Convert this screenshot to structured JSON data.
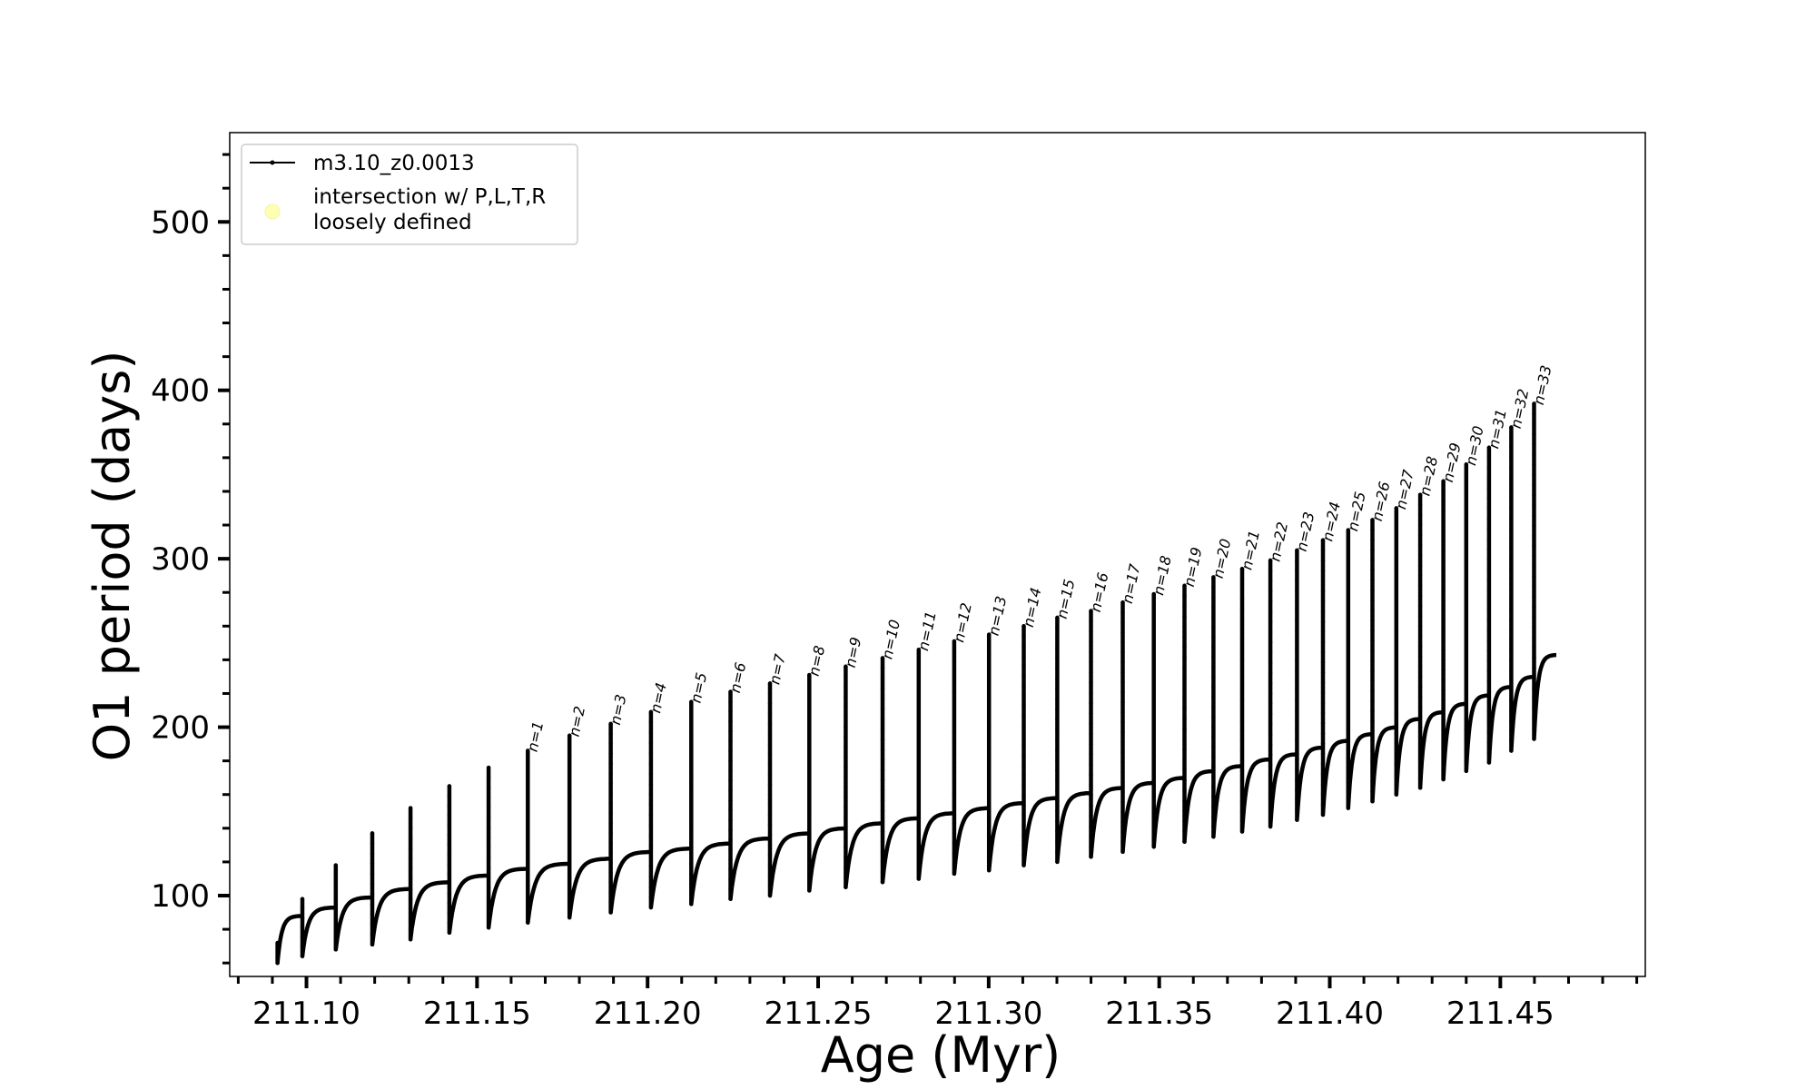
{
  "chart_data": {
    "type": "line",
    "xlabel": "Age (Myr)",
    "ylabel": "O1 period (days)",
    "xlim": [
      211.0775,
      211.4925
    ],
    "ylim": [
      52,
      553
    ],
    "xticks": [
      211.1,
      211.15,
      211.2,
      211.25,
      211.3,
      211.35,
      211.4,
      211.45
    ],
    "xtick_labels": [
      "211.10",
      "211.15",
      "211.20",
      "211.25",
      "211.30",
      "211.35",
      "211.40",
      "211.45"
    ],
    "yticks": [
      100,
      200,
      300,
      400,
      500
    ],
    "ytick_labels": [
      "100",
      "200",
      "300",
      "400",
      "500"
    ],
    "grid": false,
    "legend": {
      "placement": "top-left",
      "entries": [
        {
          "label": "m3.10_z0.0013",
          "marker": "line-dot",
          "color": "#000000"
        },
        {
          "label_lines": [
            "intersection w/ P,L,T,R",
            "loosely defined"
          ],
          "marker": "circle",
          "color": "#ffffb3"
        }
      ]
    },
    "series": [
      {
        "name": "m3.10_z0.0013",
        "color": "#000000",
        "pulses": [
          {
            "x": 211.0915,
            "peak": 72,
            "trough": 60,
            "plateau": 88
          },
          {
            "x": 211.0988,
            "peak": 98,
            "trough": 64,
            "plateau": 93
          },
          {
            "x": 211.1086,
            "peak": 118,
            "trough": 68,
            "plateau": 99
          },
          {
            "x": 211.1193,
            "peak": 137,
            "trough": 71,
            "plateau": 104
          },
          {
            "x": 211.1305,
            "peak": 152,
            "trough": 74,
            "plateau": 108
          },
          {
            "x": 211.1419,
            "peak": 165,
            "trough": 78,
            "plateau": 112
          },
          {
            "x": 211.1534,
            "peak": 176,
            "trough": 81,
            "plateau": 116
          },
          {
            "x": 211.1649,
            "peak": 186,
            "trough": 84,
            "plateau": 119
          },
          {
            "x": 211.1771,
            "peak": 195,
            "trough": 87,
            "plateau": 122
          },
          {
            "x": 211.1892,
            "peak": 202,
            "trough": 90,
            "plateau": 126
          },
          {
            "x": 211.201,
            "peak": 209,
            "trough": 93,
            "plateau": 128
          },
          {
            "x": 211.2128,
            "peak": 215,
            "trough": 95,
            "plateau": 131
          },
          {
            "x": 211.2243,
            "peak": 221,
            "trough": 98,
            "plateau": 134
          },
          {
            "x": 211.2359,
            "peak": 226,
            "trough": 100,
            "plateau": 137
          },
          {
            "x": 211.2474,
            "peak": 231,
            "trough": 103,
            "plateau": 140
          },
          {
            "x": 211.2581,
            "peak": 236,
            "trough": 105,
            "plateau": 143
          },
          {
            "x": 211.2689,
            "peak": 241,
            "trough": 108,
            "plateau": 146
          },
          {
            "x": 211.2795,
            "peak": 246,
            "trough": 110,
            "plateau": 149
          },
          {
            "x": 211.2899,
            "peak": 251,
            "trough": 113,
            "plateau": 152
          },
          {
            "x": 211.3001,
            "peak": 255,
            "trough": 115,
            "plateau": 155
          },
          {
            "x": 211.3103,
            "peak": 260,
            "trough": 118,
            "plateau": 158
          },
          {
            "x": 211.3201,
            "peak": 265,
            "trough": 120,
            "plateau": 161
          },
          {
            "x": 211.33,
            "peak": 269,
            "trough": 123,
            "plateau": 164
          },
          {
            "x": 211.3393,
            "peak": 274,
            "trough": 126,
            "plateau": 167
          },
          {
            "x": 211.3484,
            "peak": 279,
            "trough": 129,
            "plateau": 170
          },
          {
            "x": 211.3574,
            "peak": 284,
            "trough": 132,
            "plateau": 174
          },
          {
            "x": 211.3659,
            "peak": 289,
            "trough": 135,
            "plateau": 177
          },
          {
            "x": 211.3743,
            "peak": 294,
            "trough": 138,
            "plateau": 181
          },
          {
            "x": 211.3826,
            "peak": 299,
            "trough": 141,
            "plateau": 184
          },
          {
            "x": 211.3904,
            "peak": 305,
            "trough": 145,
            "plateau": 188
          },
          {
            "x": 211.398,
            "peak": 311,
            "trough": 148,
            "plateau": 192
          },
          {
            "x": 211.4054,
            "peak": 317,
            "trough": 152,
            "plateau": 196
          },
          {
            "x": 211.4125,
            "peak": 323,
            "trough": 156,
            "plateau": 200
          },
          {
            "x": 211.4195,
            "peak": 330,
            "trough": 160,
            "plateau": 205
          },
          {
            "x": 211.4265,
            "peak": 338,
            "trough": 164,
            "plateau": 209
          },
          {
            "x": 211.4333,
            "peak": 346,
            "trough": 169,
            "plateau": 214
          },
          {
            "x": 211.44,
            "peak": 356,
            "trough": 174,
            "plateau": 219
          },
          {
            "x": 211.4467,
            "peak": 366,
            "trough": 179,
            "plateau": 224
          },
          {
            "x": 211.4532,
            "peak": 378,
            "trough": 186,
            "plateau": 230
          },
          {
            "x": 211.4599,
            "peak": 392,
            "trough": 193,
            "plateau": 237
          }
        ],
        "end": {
          "x": 211.4664,
          "y": 243
        }
      }
    ],
    "annotations": [
      {
        "text": "n=1",
        "x": 211.1649,
        "y": 186
      },
      {
        "text": "n=2",
        "x": 211.1771,
        "y": 195
      },
      {
        "text": "n=3",
        "x": 211.1892,
        "y": 202
      },
      {
        "text": "n=4",
        "x": 211.201,
        "y": 209
      },
      {
        "text": "n=5",
        "x": 211.2128,
        "y": 215
      },
      {
        "text": "n=6",
        "x": 211.2243,
        "y": 221
      },
      {
        "text": "n=7",
        "x": 211.2359,
        "y": 226
      },
      {
        "text": "n=8",
        "x": 211.2474,
        "y": 231
      },
      {
        "text": "n=9",
        "x": 211.2581,
        "y": 236
      },
      {
        "text": "n=10",
        "x": 211.2689,
        "y": 241
      },
      {
        "text": "n=11",
        "x": 211.2795,
        "y": 246
      },
      {
        "text": "n=12",
        "x": 211.2899,
        "y": 251
      },
      {
        "text": "n=13",
        "x": 211.3001,
        "y": 255
      },
      {
        "text": "n=14",
        "x": 211.3103,
        "y": 260
      },
      {
        "text": "n=15",
        "x": 211.3201,
        "y": 265
      },
      {
        "text": "n=16",
        "x": 211.33,
        "y": 269
      },
      {
        "text": "n=17",
        "x": 211.3393,
        "y": 274
      },
      {
        "text": "n=18",
        "x": 211.3484,
        "y": 279
      },
      {
        "text": "n=19",
        "x": 211.3574,
        "y": 284
      },
      {
        "text": "n=20",
        "x": 211.3659,
        "y": 289
      },
      {
        "text": "n=21",
        "x": 211.3743,
        "y": 294
      },
      {
        "text": "n=22",
        "x": 211.3826,
        "y": 299
      },
      {
        "text": "n=23",
        "x": 211.3904,
        "y": 305
      },
      {
        "text": "n=24",
        "x": 211.398,
        "y": 311
      },
      {
        "text": "n=25",
        "x": 211.4054,
        "y": 317
      },
      {
        "text": "n=26",
        "x": 211.4125,
        "y": 323
      },
      {
        "text": "n=27",
        "x": 211.4195,
        "y": 330
      },
      {
        "text": "n=28",
        "x": 211.4265,
        "y": 338
      },
      {
        "text": "n=29",
        "x": 211.4333,
        "y": 346
      },
      {
        "text": "n=30",
        "x": 211.44,
        "y": 356
      },
      {
        "text": "n=31",
        "x": 211.4467,
        "y": 366
      },
      {
        "text": "n=32",
        "x": 211.4532,
        "y": 378
      },
      {
        "text": "n=33",
        "x": 211.4599,
        "y": 392
      }
    ]
  }
}
